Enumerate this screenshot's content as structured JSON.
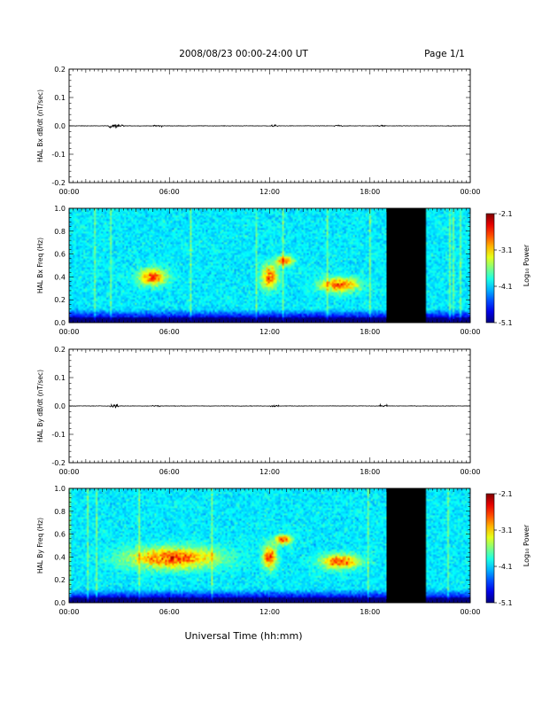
{
  "header": {
    "title": "2008/08/23  00:00-24:00 UT",
    "page": "Page 1/1"
  },
  "xlabel": "Universal Time (hh:mm)",
  "chart_data": [
    {
      "type": "line",
      "name": "panel-bx-dbdt",
      "ylabel": "HAL Bx dB/dt (nT/sec)",
      "ylim": [
        -0.2,
        0.2
      ],
      "yticks": [
        "0.2",
        "0.1",
        "0.0",
        "-0.1",
        "-0.2"
      ],
      "xlim": [
        0,
        24
      ],
      "xticks": [
        "00:00",
        "06:00",
        "12:00",
        "18:00",
        "00:00"
      ],
      "baseline": 0.0,
      "bursts": [
        {
          "t": 2.6,
          "amp": 0.007
        },
        {
          "t": 3.05,
          "amp": 0.004
        },
        {
          "t": 5.3,
          "amp": 0.003
        },
        {
          "t": 12.3,
          "amp": 0.003
        },
        {
          "t": 16.1,
          "amp": 0.003
        },
        {
          "t": 18.7,
          "amp": 0.003
        }
      ]
    },
    {
      "type": "heatmap",
      "name": "panel-bx-spectrogram",
      "ylabel": "HAL Bx Freq (Hz)",
      "ylim": [
        0.0,
        1.0
      ],
      "yticks": [
        "1.0",
        "0.8",
        "0.6",
        "0.4",
        "0.2",
        "0.0"
      ],
      "xlim": [
        0,
        24
      ],
      "xticks": [
        "00:00",
        "06:00",
        "12:00",
        "18:00",
        "00:00"
      ],
      "data_gap": [
        19.0,
        21.3
      ],
      "colorbar": {
        "label": "Log₁₀ Power",
        "ticks": [
          "-2.1",
          "-3.1",
          "-4.1",
          "-5.1"
        ],
        "range": [
          -5.1,
          -2.1
        ]
      },
      "enhancements": [
        {
          "t": 5.0,
          "f": 0.4,
          "dt": 0.8,
          "df": 0.07
        },
        {
          "t": 12.0,
          "f": 0.4,
          "dt": 0.45,
          "df": 0.1
        },
        {
          "t": 12.9,
          "f": 0.54,
          "dt": 0.5,
          "df": 0.04
        },
        {
          "t": 16.2,
          "f": 0.33,
          "dt": 1.1,
          "df": 0.06
        }
      ]
    },
    {
      "type": "line",
      "name": "panel-by-dbdt",
      "ylabel": "HAL By dB/dt (nT/sec)",
      "ylim": [
        -0.2,
        0.2
      ],
      "yticks": [
        "0.2",
        "0.1",
        "0.0",
        "-0.1",
        "-0.2"
      ],
      "xlim": [
        0,
        24
      ],
      "xticks": [
        "00:00",
        "06:00",
        "12:00",
        "18:00",
        "00:00"
      ],
      "baseline": 0.0,
      "bursts": [
        {
          "t": 2.7,
          "amp": 0.009
        },
        {
          "t": 5.2,
          "amp": 0.003
        },
        {
          "t": 12.3,
          "amp": 0.003
        },
        {
          "t": 18.8,
          "amp": 0.004
        }
      ]
    },
    {
      "type": "heatmap",
      "name": "panel-by-spectrogram",
      "ylabel": "HAL By Freq (Hz)",
      "ylim": [
        0.0,
        1.0
      ],
      "yticks": [
        "1.0",
        "0.8",
        "0.6",
        "0.4",
        "0.2",
        "0.0"
      ],
      "xlim": [
        0,
        24
      ],
      "xticks": [
        "00:00",
        "06:00",
        "12:00",
        "18:00",
        "00:00"
      ],
      "data_gap": [
        19.0,
        21.3
      ],
      "colorbar": {
        "label": "Log₁₀ Power",
        "ticks": [
          "-2.1",
          "-3.1",
          "-4.1",
          "-5.1"
        ],
        "range": [
          -5.1,
          -2.1
        ]
      },
      "enhancements": [
        {
          "t": 6.2,
          "f": 0.39,
          "dt": 2.6,
          "df": 0.09
        },
        {
          "t": 12.0,
          "f": 0.4,
          "dt": 0.4,
          "df": 0.1
        },
        {
          "t": 12.8,
          "f": 0.55,
          "dt": 0.5,
          "df": 0.04
        },
        {
          "t": 16.2,
          "f": 0.36,
          "dt": 1.1,
          "df": 0.06
        }
      ]
    }
  ]
}
